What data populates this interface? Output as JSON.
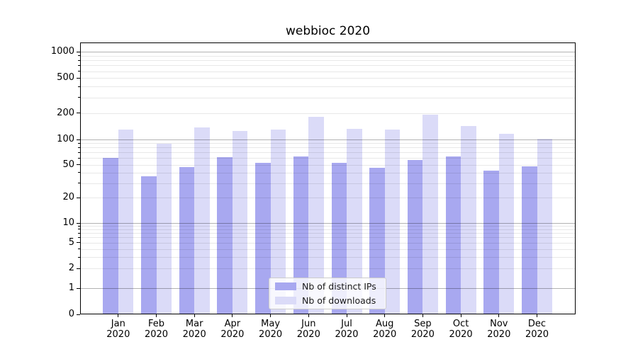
{
  "title": "webbioc 2020",
  "legend": {
    "items": [
      {
        "label": "Nb of distinct IPs",
        "color": "#a8a8f0"
      },
      {
        "label": "Nb of downloads",
        "color": "#dbdbf8"
      }
    ]
  },
  "y_axis": {
    "tick_labels": [
      "0",
      "1",
      "2",
      "5",
      "10",
      "20",
      "50",
      "100",
      "200",
      "500",
      "1000"
    ]
  },
  "colors": {
    "distinct_ips_bar": "#a8a8f0",
    "downloads_bar": "#dbdbf8",
    "major_gridline": "rgba(0,0,0,0.30)",
    "minor_gridline": "rgba(0,0,0,0.09)",
    "axis": "#000000",
    "legend_border": "#cccccc",
    "background": "#ffffff"
  },
  "chart_data": {
    "type": "bar",
    "title": "webbioc 2020",
    "categories": [
      "Jan 2020",
      "Feb 2020",
      "Mar 2020",
      "Apr 2020",
      "May 2020",
      "Jun 2020",
      "Jul 2020",
      "Aug 2020",
      "Sep 2020",
      "Oct 2020",
      "Nov 2020",
      "Dec 2020"
    ],
    "series": [
      {
        "name": "Nb of distinct IPs",
        "color": "#a8a8f0",
        "values": [
          60,
          36,
          47,
          61,
          53,
          62,
          53,
          46,
          57,
          63,
          42,
          48
        ]
      },
      {
        "name": "Nb of downloads",
        "color": "#dbdbf8",
        "values": [
          130,
          89,
          137,
          126,
          129,
          182,
          132,
          129,
          192,
          142,
          117,
          101
        ]
      }
    ],
    "xlabel": "",
    "ylabel": "",
    "yscale": "symlog",
    "yticks": [
      0,
      1,
      2,
      5,
      10,
      20,
      50,
      100,
      200,
      500,
      1000
    ],
    "major_gridlines": [
      1,
      10,
      100,
      1000
    ],
    "ylim": [
      0,
      1320
    ],
    "grid": true,
    "legend_position": "lower center"
  }
}
